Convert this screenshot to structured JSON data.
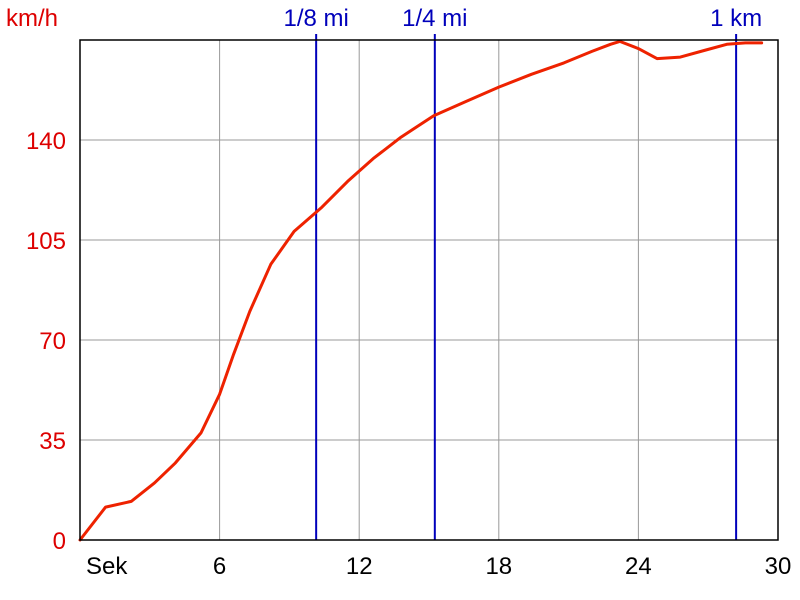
{
  "chart_data": {
    "type": "line",
    "title": "",
    "xlabel": "Sek",
    "ylabel": "km/h",
    "xlim": [
      0,
      30
    ],
    "ylim": [
      0,
      175
    ],
    "x_ticks": [
      6,
      12,
      18,
      24,
      30
    ],
    "y_ticks": [
      0,
      35,
      70,
      105,
      140
    ],
    "grid": true,
    "colors": {
      "series": "#ee2200",
      "y_axis_text": "#dd0000",
      "markers": "#0000bb",
      "grid": "#999999"
    },
    "series": [
      {
        "name": "",
        "x": [
          0,
          1.1,
          2.2,
          3.2,
          4.1,
          5.2,
          6.0,
          6.6,
          7.3,
          8.2,
          9.2,
          10.4,
          11.5,
          12.6,
          13.8,
          15.2,
          16.6,
          18.0,
          19.4,
          20.8,
          22.0,
          22.8,
          23.2,
          24.0,
          24.8,
          25.8,
          26.9,
          27.8,
          28.6,
          29.3
        ],
        "y": [
          0,
          11.5,
          13.5,
          20,
          27,
          37.5,
          51,
          65,
          80,
          96.5,
          108,
          116.5,
          125.5,
          133.5,
          141,
          148.5,
          153.5,
          158.5,
          163,
          167,
          171,
          173.5,
          174.5,
          172,
          168.5,
          169,
          171.5,
          173.5,
          174,
          174
        ]
      }
    ],
    "markers": [
      {
        "label": "1/8 mi",
        "x": 10.15
      },
      {
        "label": "1/4 mi",
        "x": 15.25
      },
      {
        "label": "1 km",
        "x": 28.2
      }
    ]
  }
}
